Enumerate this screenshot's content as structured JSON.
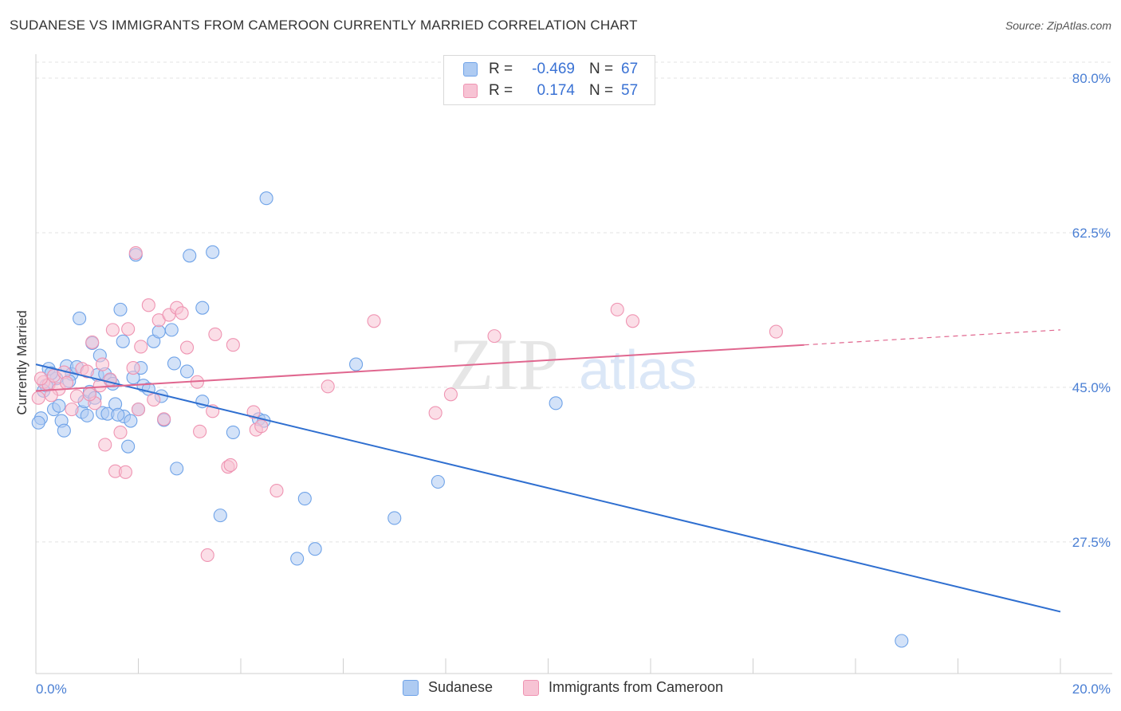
{
  "title": "SUDANESE VS IMMIGRANTS FROM CAMEROON CURRENTLY MARRIED CORRELATION CHART",
  "source": "Source: ZipAtlas.com",
  "watermark": {
    "zip": "ZIP",
    "atlas": "atlas"
  },
  "legend": {
    "rows": [
      {
        "r_label": "R =",
        "r_value": "-0.469",
        "n_label": "N =",
        "n_value": "67"
      },
      {
        "r_label": "R =",
        "r_value": "0.174",
        "n_label": "N =",
        "n_value": "57"
      }
    ]
  },
  "chart_data": {
    "type": "scatter",
    "title": "SUDANESE VS IMMIGRANTS FROM CAMEROON CURRENTLY MARRIED CORRELATION CHART",
    "xlabel": "",
    "ylabel": "Currently Married",
    "xlim": [
      0,
      20
    ],
    "ylim": [
      10,
      82
    ],
    "x_tick_labels": [
      {
        "value": 0,
        "label": "0.0%"
      },
      {
        "value": 20,
        "label": "20.0%"
      }
    ],
    "y_tick_labels": [
      {
        "value": 80,
        "label": "80.0%"
      },
      {
        "value": 62.5,
        "label": "62.5%"
      },
      {
        "value": 45,
        "label": "45.0%"
      },
      {
        "value": 27.5,
        "label": "27.5%"
      }
    ],
    "x_minor_ticks": [
      2,
      4,
      6,
      8,
      10,
      12,
      14,
      16,
      18,
      20
    ],
    "grid": true,
    "legend_position": "top-center",
    "series": [
      {
        "name": "Sudanese",
        "color": "#6fa3e8",
        "fill": "#aecbf2",
        "line_color": "#2f6fd0",
        "trend": {
          "x": [
            0,
            20
          ],
          "y": [
            47.6,
            19.6
          ],
          "dashed_from": null
        },
        "points": [
          [
            0.1,
            41.5
          ],
          [
            0.2,
            45.2
          ],
          [
            0.25,
            47.1
          ],
          [
            0.35,
            42.5
          ],
          [
            0.4,
            46.0
          ],
          [
            0.5,
            41.2
          ],
          [
            0.55,
            40.1
          ],
          [
            0.6,
            47.4
          ],
          [
            0.7,
            46.5
          ],
          [
            0.8,
            47.3
          ],
          [
            0.85,
            52.8
          ],
          [
            0.9,
            42.2
          ],
          [
            0.95,
            43.4
          ],
          [
            1.0,
            41.8
          ],
          [
            1.05,
            44.5
          ],
          [
            1.1,
            50.0
          ],
          [
            1.2,
            46.4
          ],
          [
            1.25,
            48.6
          ],
          [
            1.3,
            42.1
          ],
          [
            1.35,
            46.5
          ],
          [
            1.4,
            42.0
          ],
          [
            1.45,
            45.8
          ],
          [
            1.5,
            45.4
          ],
          [
            1.55,
            43.1
          ],
          [
            1.65,
            53.8
          ],
          [
            1.7,
            50.2
          ],
          [
            1.72,
            41.7
          ],
          [
            1.8,
            38.3
          ],
          [
            1.85,
            41.2
          ],
          [
            1.9,
            46.1
          ],
          [
            1.95,
            60.0
          ],
          [
            2.0,
            42.5
          ],
          [
            2.05,
            47.2
          ],
          [
            2.1,
            45.2
          ],
          [
            2.3,
            50.2
          ],
          [
            2.4,
            51.3
          ],
          [
            2.45,
            44.0
          ],
          [
            2.5,
            41.3
          ],
          [
            2.65,
            51.5
          ],
          [
            2.7,
            47.7
          ],
          [
            2.75,
            35.8
          ],
          [
            2.95,
            46.8
          ],
          [
            3.0,
            59.9
          ],
          [
            3.25,
            54.0
          ],
          [
            3.25,
            43.4
          ],
          [
            3.45,
            60.3
          ],
          [
            3.6,
            30.5
          ],
          [
            3.85,
            39.9
          ],
          [
            4.35,
            41.4
          ],
          [
            4.45,
            41.2
          ],
          [
            4.5,
            66.4
          ],
          [
            5.1,
            25.6
          ],
          [
            5.25,
            32.4
          ],
          [
            5.45,
            26.7
          ],
          [
            6.25,
            47.6
          ],
          [
            7.0,
            30.2
          ],
          [
            7.85,
            34.3
          ],
          [
            10.15,
            43.2
          ],
          [
            16.9,
            16.3
          ],
          [
            0.15,
            44.6
          ],
          [
            0.3,
            46.6
          ],
          [
            0.45,
            42.9
          ],
          [
            0.65,
            45.7
          ],
          [
            1.15,
            43.8
          ],
          [
            1.6,
            41.9
          ],
          [
            2.2,
            44.8
          ],
          [
            0.05,
            41.0
          ]
        ]
      },
      {
        "name": "Immigrants from Cameroon",
        "color": "#ef94b2",
        "fill": "#f7c3d4",
        "line_color": "#e0678f",
        "trend": {
          "x": [
            0,
            15
          ],
          "y": [
            44.6,
            49.8
          ],
          "dashed_to": [
            20,
            51.5
          ]
        },
        "points": [
          [
            0.05,
            43.8
          ],
          [
            0.15,
            45.6
          ],
          [
            0.25,
            45.3
          ],
          [
            0.35,
            46.3
          ],
          [
            0.45,
            44.8
          ],
          [
            0.55,
            46.7
          ],
          [
            0.7,
            42.5
          ],
          [
            0.8,
            44.0
          ],
          [
            0.9,
            47.1
          ],
          [
            1.0,
            46.8
          ],
          [
            1.1,
            50.1
          ],
          [
            1.15,
            43.2
          ],
          [
            1.25,
            45.2
          ],
          [
            1.3,
            47.6
          ],
          [
            1.35,
            38.5
          ],
          [
            1.5,
            51.5
          ],
          [
            1.55,
            35.5
          ],
          [
            1.65,
            39.9
          ],
          [
            1.75,
            35.4
          ],
          [
            1.8,
            51.6
          ],
          [
            1.9,
            47.2
          ],
          [
            2.0,
            42.5
          ],
          [
            2.05,
            49.6
          ],
          [
            2.2,
            54.3
          ],
          [
            2.4,
            52.6
          ],
          [
            2.5,
            41.4
          ],
          [
            2.6,
            53.2
          ],
          [
            2.75,
            54.0
          ],
          [
            2.85,
            53.4
          ],
          [
            2.95,
            49.5
          ],
          [
            3.15,
            45.6
          ],
          [
            3.2,
            40.0
          ],
          [
            3.35,
            26.0
          ],
          [
            3.45,
            42.3
          ],
          [
            3.5,
            51.0
          ],
          [
            3.75,
            36.0
          ],
          [
            3.8,
            36.2
          ],
          [
            3.85,
            49.8
          ],
          [
            4.25,
            42.2
          ],
          [
            4.3,
            40.2
          ],
          [
            4.4,
            40.6
          ],
          [
            4.7,
            33.3
          ],
          [
            5.7,
            45.1
          ],
          [
            6.6,
            52.5
          ],
          [
            7.8,
            42.1
          ],
          [
            8.1,
            44.2
          ],
          [
            8.95,
            50.8
          ],
          [
            11.35,
            53.8
          ],
          [
            11.65,
            52.5
          ],
          [
            14.45,
            51.3
          ],
          [
            1.95,
            60.2
          ],
          [
            0.1,
            46.0
          ],
          [
            0.6,
            45.5
          ],
          [
            1.05,
            44.2
          ],
          [
            1.45,
            45.9
          ],
          [
            2.3,
            43.6
          ],
          [
            0.3,
            44.1
          ]
        ]
      }
    ]
  }
}
